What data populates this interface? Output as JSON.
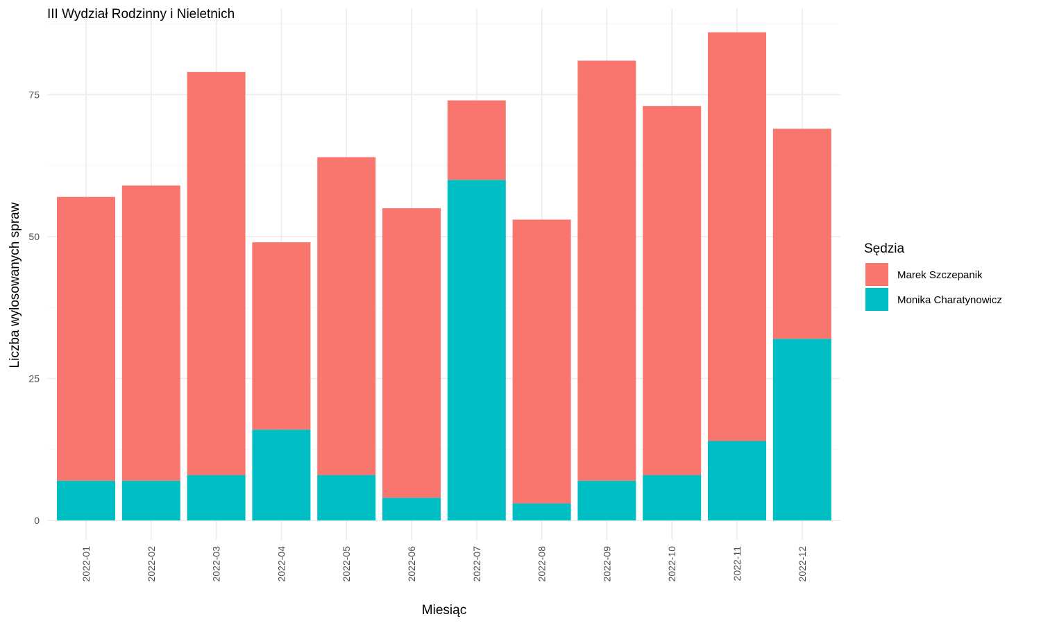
{
  "chart_data": {
    "type": "bar",
    "stacked": true,
    "title": "III Wydział Rodzinny i Nieletnich",
    "xlabel": "Miesiąc",
    "ylabel": "Liczba wylosowanych spraw",
    "categories": [
      "2022-01",
      "2022-02",
      "2022-03",
      "2022-04",
      "2022-05",
      "2022-06",
      "2022-07",
      "2022-08",
      "2022-09",
      "2022-10",
      "2022-11",
      "2022-12"
    ],
    "series": [
      {
        "name": "Monika Charatynowicz",
        "color": "#00BFC4",
        "values": [
          7,
          7,
          8,
          16,
          8,
          4,
          60,
          3,
          7,
          8,
          14,
          32
        ]
      },
      {
        "name": "Marek Szczepanik",
        "color": "#F8766D",
        "values": [
          50,
          52,
          71,
          33,
          56,
          51,
          14,
          50,
          74,
          65,
          72,
          37
        ]
      }
    ],
    "yticks": [
      0,
      25,
      50,
      75
    ],
    "ylim": [
      0,
      90
    ],
    "grid": true,
    "legend": {
      "title": "Sędzia",
      "position": "right",
      "entries": [
        {
          "name": "Marek Szczepanik",
          "color": "#F8766D"
        },
        {
          "name": "Monika Charatynowicz",
          "color": "#00BFC4"
        }
      ]
    }
  }
}
